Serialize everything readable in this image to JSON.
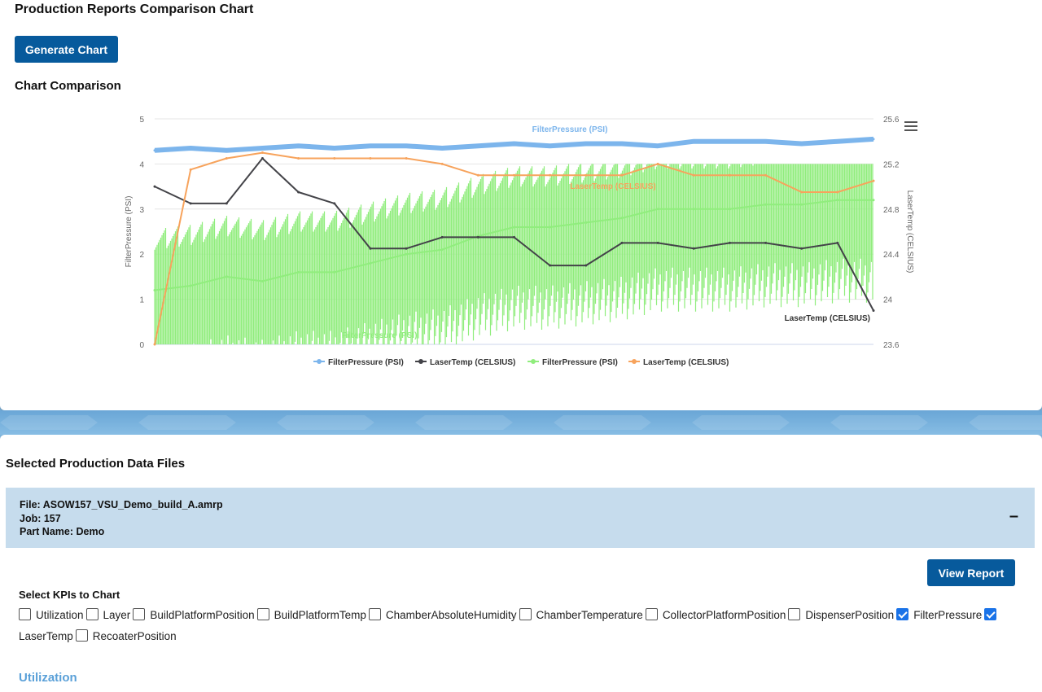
{
  "page": {
    "title": "Production Reports Comparison Chart",
    "generate_label": "Generate Chart",
    "section_title": "Chart Comparison"
  },
  "chart_data": {
    "type": "line",
    "title": "",
    "y_left": {
      "label": "FilterPressure (PSI)",
      "ticks": [
        "0",
        "1",
        "2",
        "3",
        "4",
        "5"
      ],
      "range": [
        0,
        5
      ]
    },
    "y_right": {
      "label": "LaserTemp (CELSIUS)",
      "ticks": [
        "23.6",
        "24",
        "24.4",
        "24.8",
        "25.2",
        "25.6"
      ],
      "range": [
        23.6,
        25.6
      ]
    },
    "grid": true,
    "legend_position": "bottom",
    "series": [
      {
        "name": "FilterPressure (PSI)",
        "axis": "left",
        "color": "#7cb5ec",
        "marker": "circle",
        "values": [
          4.3,
          4.35,
          4.3,
          4.35,
          4.4,
          4.35,
          4.4,
          4.4,
          4.35,
          4.4,
          4.45,
          4.4,
          4.45,
          4.45,
          4.4,
          4.5,
          4.5,
          4.5,
          4.45,
          4.5,
          4.55
        ]
      },
      {
        "name": "LaserTemp (CELSIUS)",
        "axis": "right",
        "color": "#434348",
        "marker": "diamond",
        "values": [
          25.0,
          24.85,
          24.85,
          25.25,
          24.95,
          24.85,
          24.45,
          24.45,
          24.55,
          24.55,
          24.55,
          24.3,
          24.3,
          24.5,
          24.5,
          24.45,
          24.5,
          24.5,
          24.45,
          24.5,
          23.9
        ]
      },
      {
        "name": "FilterPressure (PSI)",
        "axis": "left",
        "color": "#90ed7d",
        "marker": "square",
        "values": [
          1.2,
          1.3,
          1.5,
          1.4,
          1.6,
          1.6,
          1.8,
          2.0,
          2.1,
          2.4,
          2.6,
          2.6,
          2.7,
          2.8,
          3.0,
          3.0,
          3.0,
          3.1,
          3.1,
          3.2,
          3.2
        ]
      },
      {
        "name": "LaserTemp (CELSIUS)",
        "axis": "right",
        "color": "#f7a35c",
        "marker": "triangle",
        "values": [
          23.6,
          25.15,
          25.25,
          25.3,
          25.25,
          25.25,
          25.25,
          25.25,
          25.2,
          25.1,
          25.1,
          25.1,
          25.1,
          25.1,
          25.2,
          25.1,
          25.1,
          25.1,
          24.95,
          24.95,
          25.05
        ]
      }
    ],
    "annotations": [
      "FilterPressure (PSI)",
      "LaserTemp (CELSIUS)",
      "FilterPressure (PSI)",
      "LaserTemp (CELSIUS)"
    ]
  },
  "files": {
    "title": "Selected Production Data Files",
    "file_line": "File: ASOW157_VSU_Demo_build_A.amrp",
    "job_line": "Job: 157",
    "part_line": "Part Name: Demo",
    "collapse_icon": "minus-icon",
    "view_report_label": "View Report",
    "kpi_label": "Select KPIs to Chart",
    "kpis": [
      {
        "label": "Utilization",
        "checked": false
      },
      {
        "label": "Layer",
        "checked": false
      },
      {
        "label": "BuildPlatformPosition",
        "checked": false
      },
      {
        "label": "BuildPlatformTemp",
        "checked": false
      },
      {
        "label": "ChamberAbsoluteHumidity",
        "checked": false
      },
      {
        "label": "ChamberTemperature",
        "checked": false
      },
      {
        "label": "CollectorPlatformPosition",
        "checked": false
      },
      {
        "label": "DispenserPosition",
        "checked": false
      },
      {
        "label": "FilterPressure",
        "checked": true
      },
      {
        "label": "LaserTemp",
        "checked": true
      },
      {
        "label": "RecoaterPosition",
        "checked": false
      }
    ],
    "utilization_heading": "Utilization"
  },
  "colors": {
    "primary_button": "#075a9c",
    "file_header_bg": "#c6dced",
    "accent_heading": "#5aa0d8"
  }
}
